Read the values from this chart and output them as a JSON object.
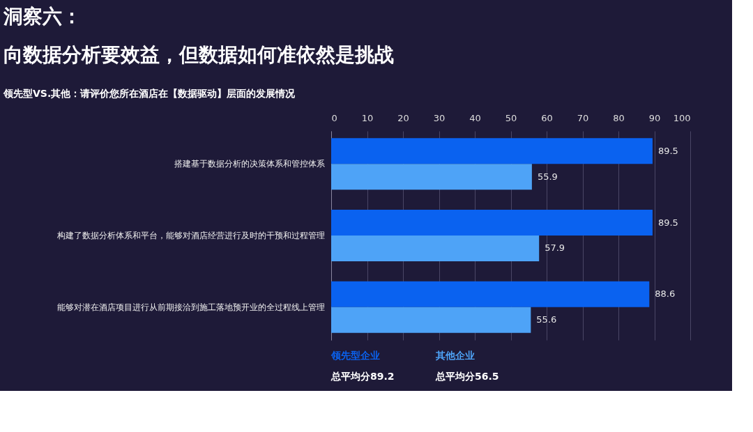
{
  "chart_data": {
    "type": "bar",
    "orientation": "horizontal",
    "title": "洞察六：",
    "subtitle": "向数据分析要效益，但数据如何准依然是挑战",
    "annotations": [
      "领先型VS.其他：请评价您所在酒店在【数据驱动】层面的发展情况",
      "总平均分89.2",
      "总平均分56.5"
    ],
    "categories": [
      "搭建基于数据分析的决策体系和管控体系",
      "构建了数据分析体系和平台，能够对酒店经营进行及时的干预和过程管理",
      "能够对潜在酒店项目进行从前期接洽到施工落地预开业的全过程线上管理"
    ],
    "series": [
      {
        "name": "领先型企业",
        "color": "#0a62f0",
        "values": [
          89.5,
          89.5,
          88.6
        ]
      },
      {
        "name": "其他企业",
        "color": "#4ea3f7",
        "values": [
          55.9,
          57.9,
          55.6
        ]
      }
    ],
    "xlim": [
      0,
      100
    ],
    "xticks": [
      0,
      10,
      20,
      30,
      40,
      50,
      60,
      70,
      80,
      90,
      100
    ],
    "grid": "x",
    "data_labels": true,
    "legend": "bottom"
  }
}
